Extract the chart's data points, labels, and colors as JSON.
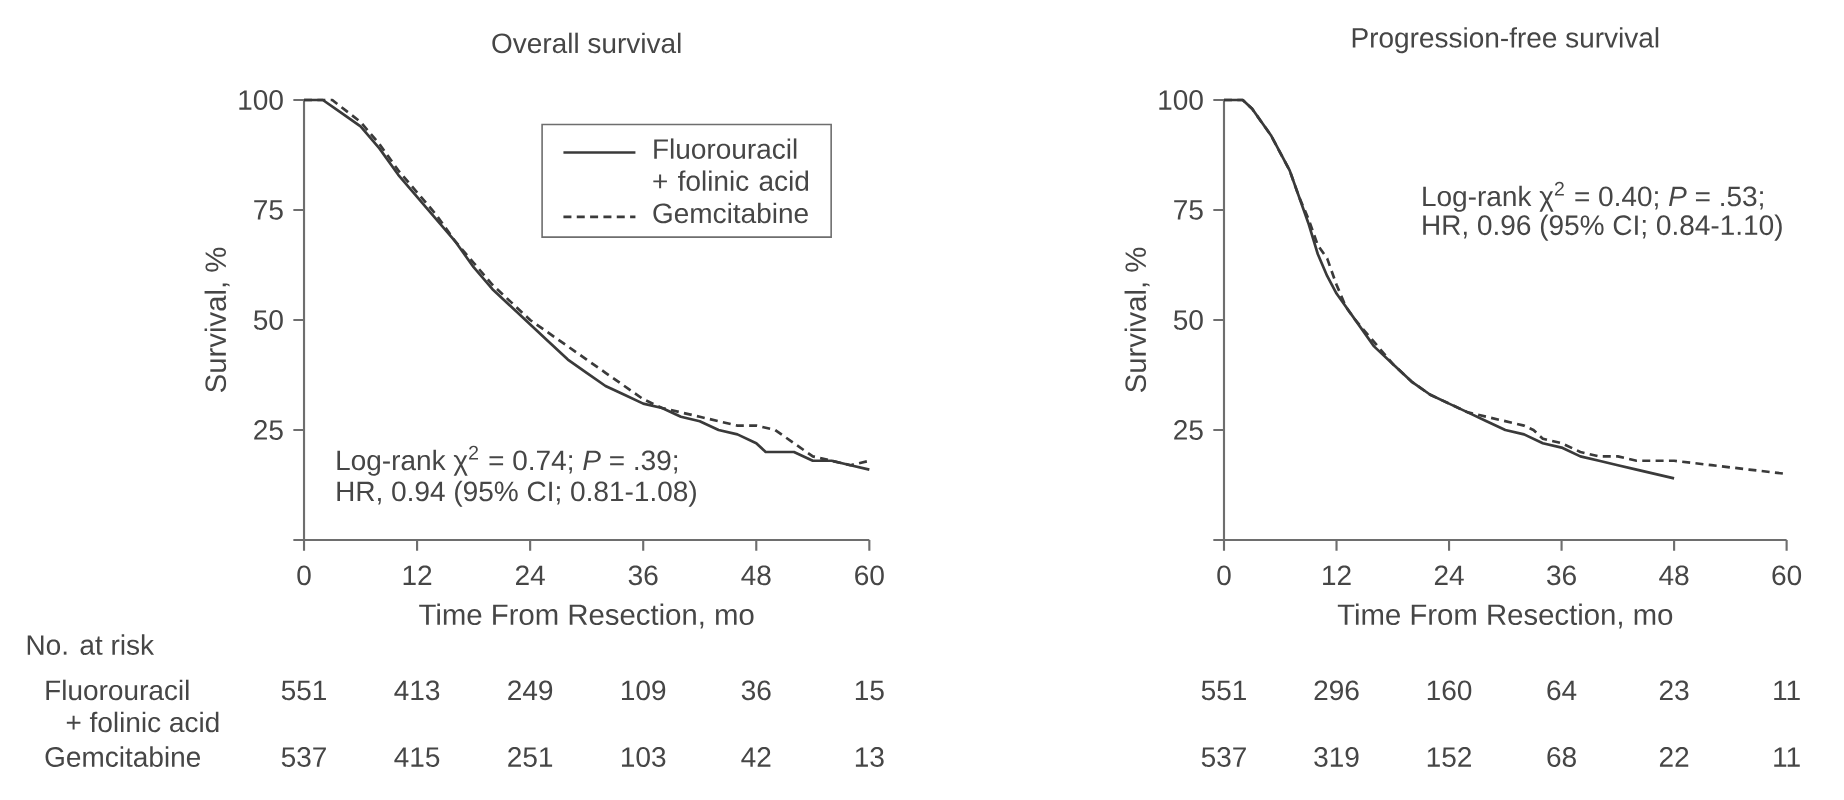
{
  "chart_data": [
    {
      "type": "line",
      "title": "Overall survival",
      "xlabel": "Time From Resection, mo",
      "ylabel": "Survival, %",
      "xlim": [
        0,
        60
      ],
      "ylim": [
        0,
        100
      ],
      "xticks": [
        0,
        12,
        24,
        36,
        48,
        60
      ],
      "yticks": [
        {
          "value": 0,
          "label": null
        },
        25,
        50,
        75,
        100
      ],
      "legend": "top right",
      "marker": "none",
      "series": [
        {
          "name": "Fluorouracil + folinic acid",
          "color": "#3a3a3a",
          "line_style": "solid",
          "x": [
            0,
            2,
            4,
            6,
            8,
            10,
            12,
            14,
            16,
            18,
            20,
            22,
            24,
            26,
            28,
            30,
            32,
            34,
            36,
            38,
            40,
            42,
            44,
            46,
            48,
            49,
            52,
            54,
            56,
            58,
            60
          ],
          "values": [
            100,
            100,
            97,
            94,
            89,
            83,
            78,
            73,
            68,
            62,
            57,
            53,
            49,
            45,
            41,
            38,
            35,
            33,
            31,
            30,
            28,
            27,
            25,
            24,
            22,
            20,
            20,
            18,
            18,
            17,
            16
          ]
        },
        {
          "name": "Gemcitabine",
          "color": "#3a3a3a",
          "line_style": "dashed",
          "x": [
            0,
            3,
            6,
            8,
            10,
            12,
            14,
            16,
            18,
            20,
            22,
            24,
            26,
            28,
            30,
            32,
            34,
            36,
            38,
            40,
            42,
            44,
            46,
            48,
            50,
            52,
            54,
            56,
            58,
            60
          ],
          "values": [
            100,
            100,
            95,
            90,
            84,
            79,
            74,
            68,
            63,
            58,
            54,
            50,
            47,
            44,
            41,
            38,
            35,
            32,
            30,
            29,
            28,
            27,
            26,
            26,
            25,
            22,
            19,
            18,
            17,
            18
          ]
        }
      ],
      "annotations": [
        "Log-rank χ$^{2}$ = 0.74; *P* = .39;",
        "HR, 0.94 (95% CI; 0.81-1.08)",
        "No. at risk",
        "Fluorouracil",
        "+ folinic acid",
        "Gemcitabine",
        "551",
        "413",
        "249",
        "109",
        "36",
        "15",
        "537",
        "415",
        "251",
        "103",
        "42",
        "13"
      ]
    },
    {
      "type": "line",
      "title": "Progression-free survival",
      "xlabel": "Time From Resection, mo",
      "ylabel": "Survival, %",
      "xlim": [
        0,
        60
      ],
      "ylim": [
        0,
        100
      ],
      "xticks": [
        0,
        12,
        24,
        36,
        48,
        60
      ],
      "yticks": [
        {
          "value": 0,
          "label": null
        },
        25,
        50,
        75,
        100
      ],
      "marker": "none",
      "series": [
        {
          "color": "#3a3a3a",
          "line_style": "solid",
          "x": [
            0,
            2,
            3,
            5,
            7,
            8,
            9,
            10,
            11,
            12,
            14,
            16,
            18,
            20,
            22,
            24,
            26,
            28,
            30,
            32,
            34,
            36,
            38,
            40,
            42,
            44,
            46,
            48
          ],
          "values": [
            100,
            100,
            98,
            92,
            84,
            78,
            72,
            65,
            60,
            56,
            50,
            44,
            40,
            36,
            33,
            31,
            29,
            27,
            25,
            24,
            22,
            21,
            19,
            18,
            17,
            16,
            15,
            14
          ]
        },
        {
          "color": "#3a3a3a",
          "line_style": "dashed",
          "x": [
            0,
            2,
            3,
            5,
            7,
            8,
            9,
            10,
            11,
            12,
            13,
            14,
            16,
            18,
            20,
            22,
            24,
            26,
            28,
            30,
            32,
            33,
            34,
            36,
            38,
            40,
            42,
            44,
            48,
            52,
            56,
            60
          ],
          "values": [
            100,
            100,
            98,
            92,
            84,
            78,
            73,
            67,
            64,
            58,
            53,
            50,
            45,
            40,
            36,
            33,
            31,
            29,
            28,
            27,
            26,
            25,
            23,
            22,
            20,
            19,
            19,
            18,
            18,
            17,
            16,
            15
          ]
        }
      ],
      "annotations": [
        "Log-rank χ$^{2}$ = 0.40; *P* = .53;",
        "HR, 0.96 (95% CI; 0.84-1.10)",
        "551",
        "296",
        "160",
        "64",
        "23",
        "11",
        "537",
        "319",
        "152",
        "68",
        "22",
        "11"
      ]
    }
  ]
}
